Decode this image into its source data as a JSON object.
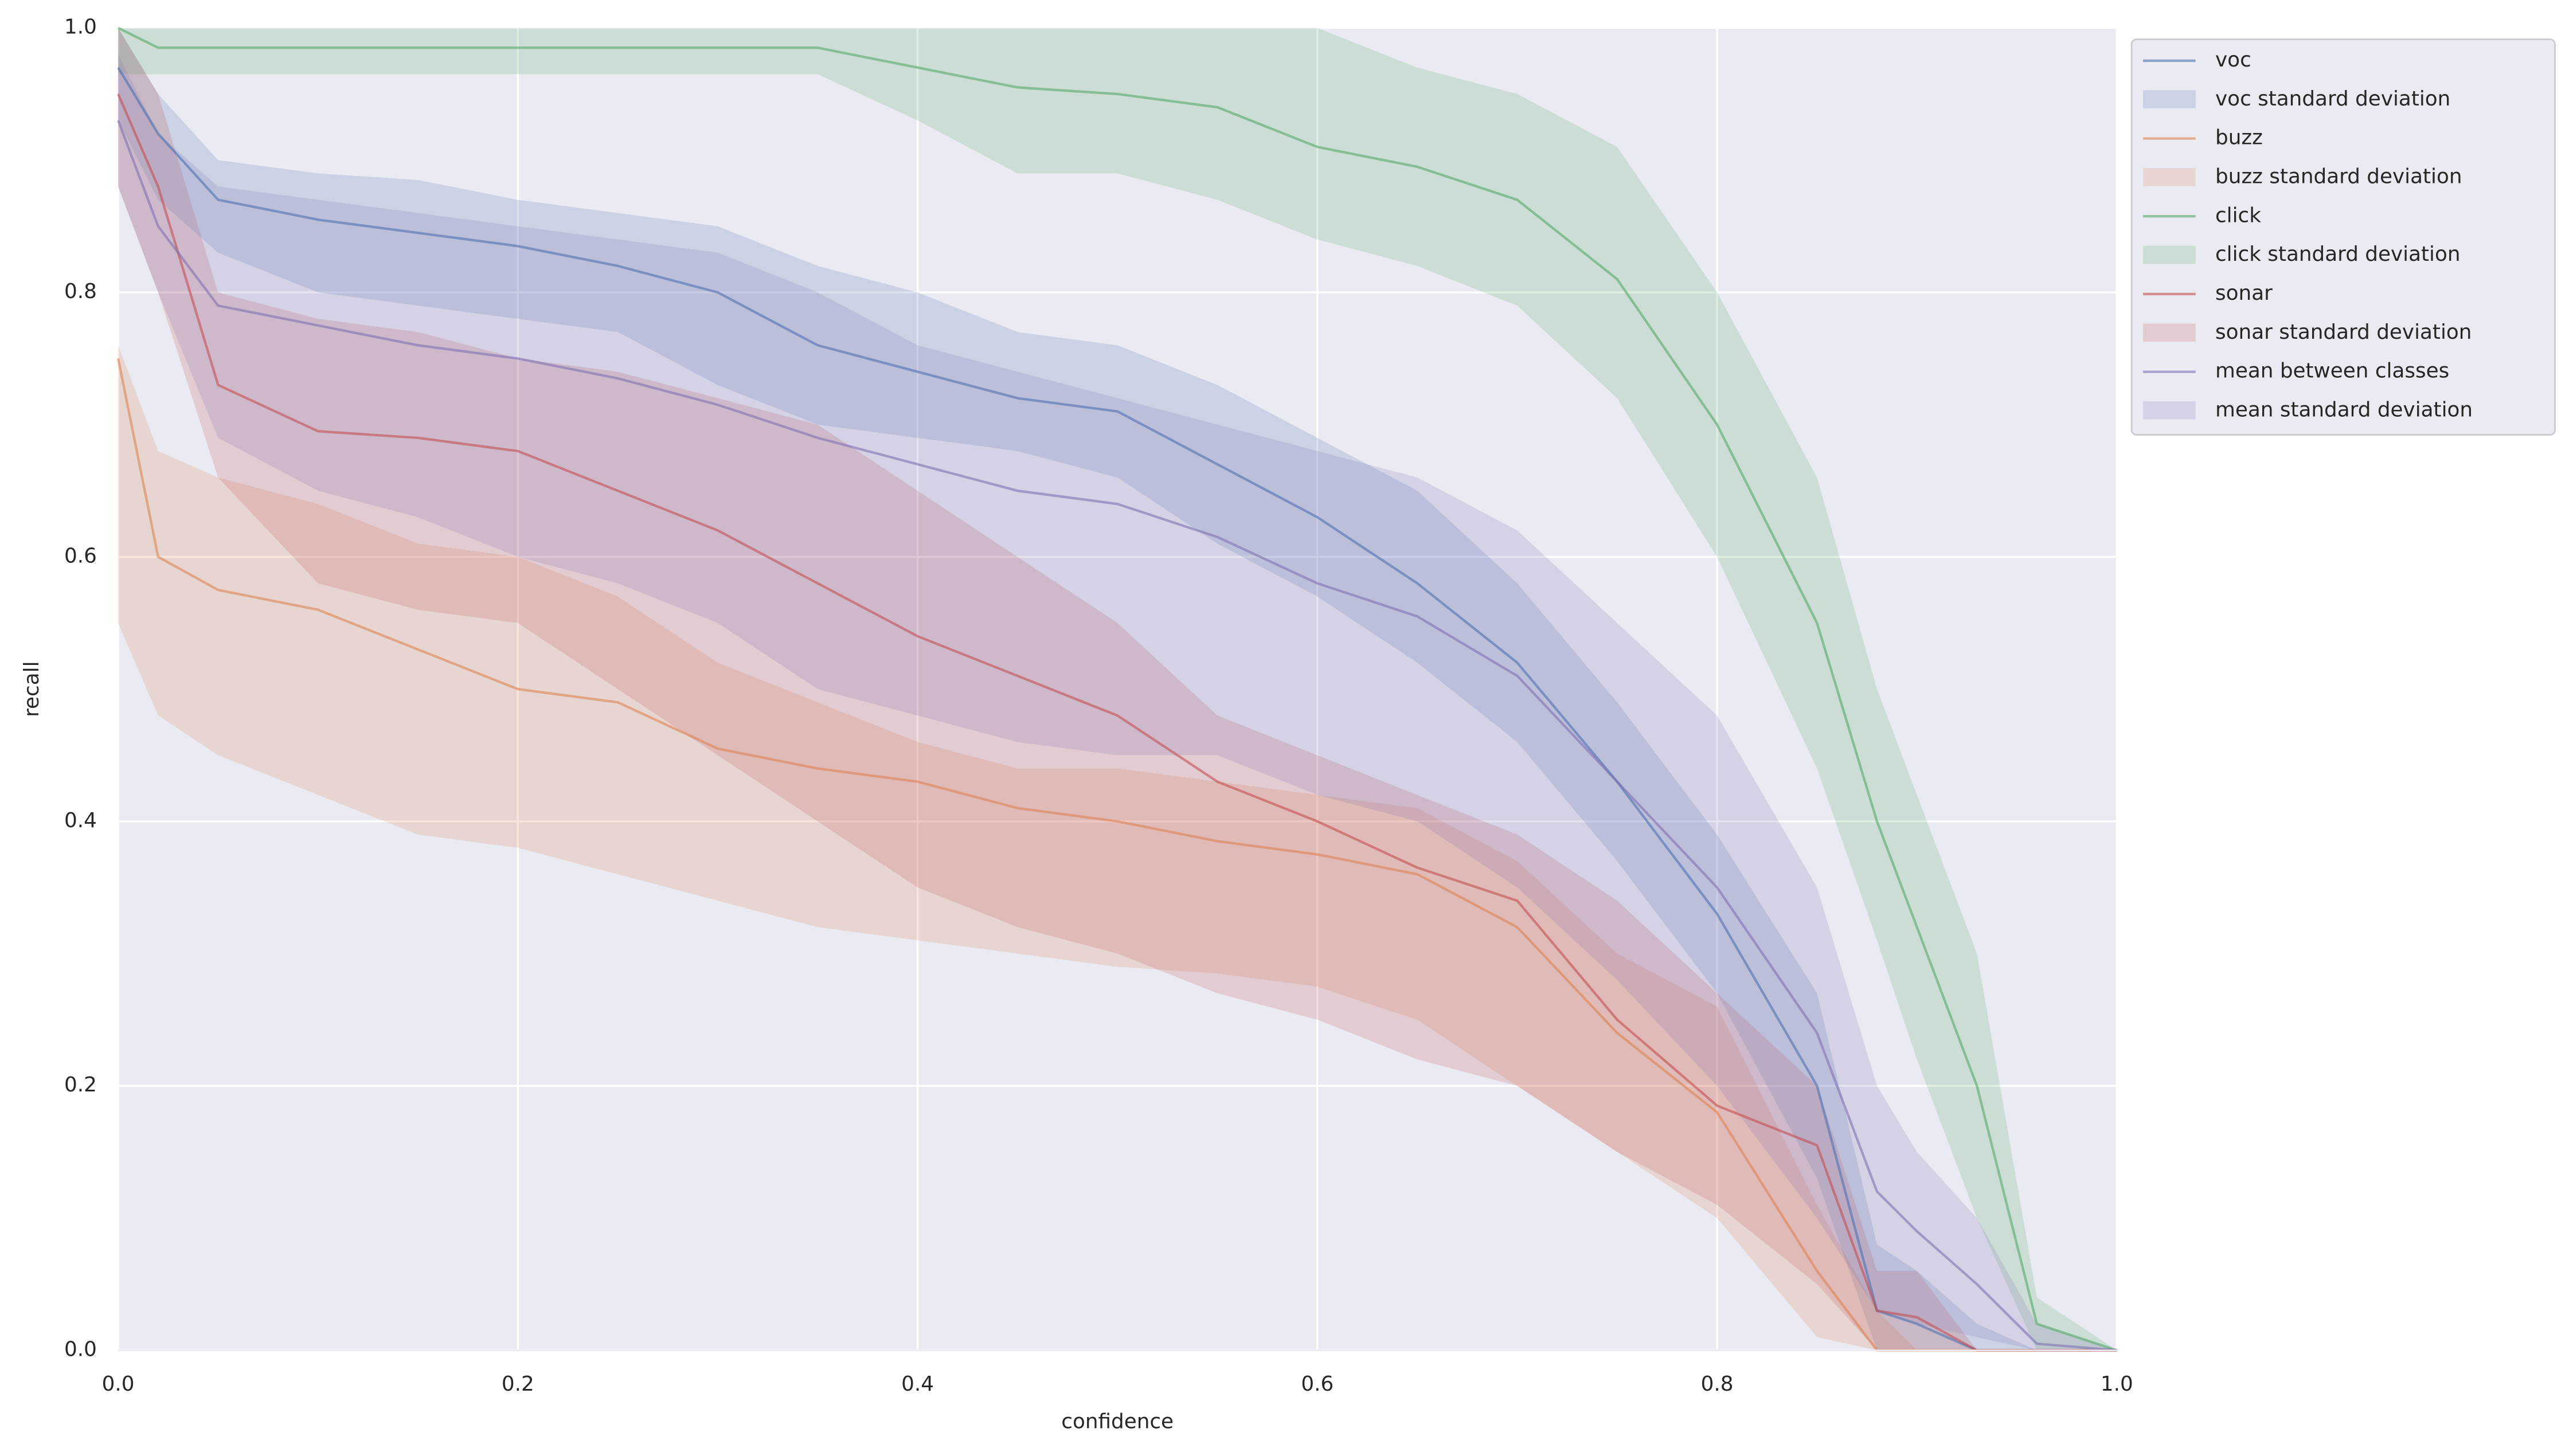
{
  "chart_data": {
    "type": "line",
    "xlabel": "confidence",
    "ylabel": "recall",
    "x": [
      0,
      0.02,
      0.05,
      0.1,
      0.15,
      0.2,
      0.25,
      0.3,
      0.35,
      0.4,
      0.45,
      0.5,
      0.55,
      0.6,
      0.65,
      0.7,
      0.75,
      0.8,
      0.85,
      0.88,
      0.9,
      0.93,
      0.96,
      1.0
    ],
    "xlim": [
      0,
      1
    ],
    "ylim": [
      0,
      1
    ],
    "xticks": [
      {
        "value": 0,
        "label": "0.0"
      },
      0.2,
      0.4,
      0.6,
      0.8,
      {
        "value": 1,
        "label": "1.0"
      }
    ],
    "yticks": [
      {
        "value": 0,
        "label": "0.0"
      },
      0.2,
      0.4,
      0.6,
      0.8,
      {
        "value": 1,
        "label": "1.0"
      }
    ],
    "grid": true,
    "legend": "outside-upper-right",
    "series": [
      {
        "name": "voc",
        "band_name": "voc standard deviation",
        "color": "#4c72b0",
        "values": [
          0.97,
          0.92,
          0.87,
          0.855,
          0.845,
          0.835,
          0.82,
          0.8,
          0.76,
          0.74,
          0.72,
          0.71,
          0.67,
          0.63,
          0.58,
          0.52,
          0.43,
          0.33,
          0.2,
          0.03,
          0.02,
          0,
          0,
          0
        ],
        "lower": [
          0.93,
          0.87,
          0.83,
          0.8,
          0.79,
          0.78,
          0.77,
          0.73,
          0.7,
          0.69,
          0.68,
          0.66,
          0.61,
          0.57,
          0.52,
          0.46,
          0.37,
          0.27,
          0.13,
          0,
          0,
          0,
          0,
          0
        ],
        "upper": [
          1.0,
          0.95,
          0.9,
          0.89,
          0.885,
          0.87,
          0.86,
          0.85,
          0.82,
          0.8,
          0.77,
          0.76,
          0.73,
          0.69,
          0.65,
          0.58,
          0.49,
          0.39,
          0.27,
          0.08,
          0.06,
          0.02,
          0,
          0
        ]
      },
      {
        "name": "buzz",
        "band_name": "buzz standard deviation",
        "color": "#dd8452",
        "values": [
          0.75,
          0.6,
          0.575,
          0.56,
          0.53,
          0.5,
          0.49,
          0.455,
          0.44,
          0.43,
          0.41,
          0.4,
          0.385,
          0.375,
          0.36,
          0.32,
          0.24,
          0.18,
          0.06,
          0,
          0,
          0,
          0,
          0
        ],
        "lower": [
          0.55,
          0.48,
          0.45,
          0.42,
          0.39,
          0.38,
          0.36,
          0.34,
          0.32,
          0.31,
          0.3,
          0.29,
          0.285,
          0.275,
          0.25,
          0.2,
          0.15,
          0.1,
          0.01,
          0,
          0,
          0,
          0,
          0
        ],
        "upper": [
          0.76,
          0.68,
          0.66,
          0.64,
          0.61,
          0.6,
          0.57,
          0.52,
          0.49,
          0.46,
          0.44,
          0.44,
          0.43,
          0.42,
          0.41,
          0.37,
          0.3,
          0.26,
          0.11,
          0.03,
          0,
          0,
          0,
          0
        ]
      },
      {
        "name": "click",
        "band_name": "click standard deviation",
        "color": "#55a868",
        "values": [
          1.0,
          0.985,
          0.985,
          0.985,
          0.985,
          0.985,
          0.985,
          0.985,
          0.985,
          0.97,
          0.955,
          0.95,
          0.94,
          0.91,
          0.895,
          0.87,
          0.81,
          0.7,
          0.55,
          0.4,
          0.32,
          0.2,
          0.02,
          0
        ],
        "lower": [
          0.965,
          0.965,
          0.965,
          0.965,
          0.965,
          0.965,
          0.965,
          0.965,
          0.965,
          0.93,
          0.89,
          0.89,
          0.87,
          0.84,
          0.82,
          0.79,
          0.72,
          0.6,
          0.44,
          0.31,
          0.22,
          0.1,
          0,
          0
        ],
        "upper": [
          1.0,
          1.0,
          1.0,
          1.0,
          1.0,
          1.0,
          1.0,
          1.0,
          1.0,
          1.0,
          1.0,
          1.0,
          1.0,
          1.0,
          0.97,
          0.95,
          0.91,
          0.8,
          0.66,
          0.5,
          0.42,
          0.3,
          0.04,
          0
        ]
      },
      {
        "name": "sonar",
        "band_name": "sonar standard deviation",
        "color": "#c44e52",
        "values": [
          0.95,
          0.88,
          0.73,
          0.695,
          0.69,
          0.68,
          0.65,
          0.62,
          0.58,
          0.54,
          0.51,
          0.48,
          0.43,
          0.4,
          0.365,
          0.34,
          0.25,
          0.185,
          0.155,
          0.03,
          0.025,
          0,
          0,
          0
        ],
        "lower": [
          0.88,
          0.8,
          0.66,
          0.58,
          0.56,
          0.55,
          0.5,
          0.45,
          0.4,
          0.35,
          0.32,
          0.3,
          0.27,
          0.25,
          0.22,
          0.2,
          0.15,
          0.11,
          0.05,
          0,
          0,
          0,
          0,
          0
        ],
        "upper": [
          1.0,
          0.95,
          0.8,
          0.78,
          0.77,
          0.75,
          0.74,
          0.72,
          0.7,
          0.65,
          0.6,
          0.55,
          0.48,
          0.45,
          0.42,
          0.39,
          0.34,
          0.27,
          0.2,
          0.06,
          0.06,
          0,
          0,
          0
        ]
      },
      {
        "name": "mean between classes",
        "band_name": "mean standard deviation",
        "color": "#8172b3",
        "values": [
          0.93,
          0.85,
          0.79,
          0.775,
          0.76,
          0.75,
          0.735,
          0.715,
          0.69,
          0.67,
          0.65,
          0.64,
          0.615,
          0.58,
          0.555,
          0.51,
          0.43,
          0.35,
          0.24,
          0.12,
          0.09,
          0.05,
          0.005,
          0
        ],
        "lower": [
          0.88,
          0.8,
          0.69,
          0.65,
          0.63,
          0.6,
          0.58,
          0.55,
          0.5,
          0.48,
          0.46,
          0.45,
          0.45,
          0.42,
          0.4,
          0.35,
          0.28,
          0.2,
          0.1,
          0.03,
          0.02,
          0.01,
          0,
          0
        ],
        "upper": [
          0.98,
          0.92,
          0.88,
          0.87,
          0.86,
          0.85,
          0.84,
          0.83,
          0.8,
          0.76,
          0.74,
          0.72,
          0.7,
          0.68,
          0.66,
          0.62,
          0.55,
          0.48,
          0.35,
          0.2,
          0.15,
          0.1,
          0.02,
          0
        ]
      }
    ]
  }
}
